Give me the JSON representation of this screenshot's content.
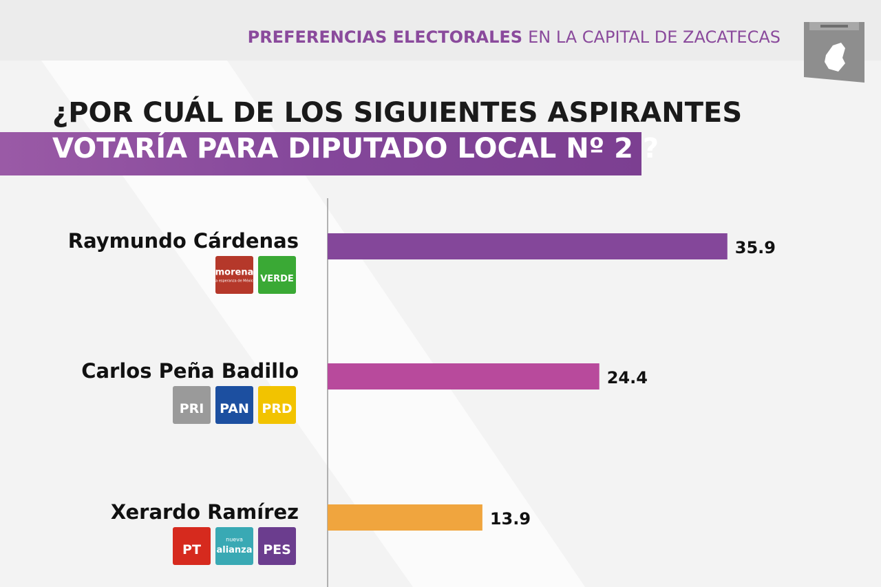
{
  "header": {
    "bold": "PREFERENCIAS ELECTORALES",
    "rest": "EN LA CAPITAL DE ZACATECAS"
  },
  "chart_data": {
    "type": "bar",
    "orientation": "horizontal",
    "title_lines": [
      "¿POR CUÁL DE LOS SIGUIENTES ASPIRANTES",
      "VOTARÍA PARA DIPUTADO LOCAL Nº 2 ?"
    ],
    "categories": [
      "Raymundo Cárdenas",
      "Carlos Peña Badillo",
      "Xerardo Ramírez"
    ],
    "values": [
      35.9,
      24.4,
      13.9
    ],
    "colors": [
      "#84479a",
      "#b84a9c",
      "#f0a53e"
    ],
    "xlim": [
      0,
      45
    ],
    "parties": [
      [
        {
          "label": "morena",
          "sub": "La esperanza de México",
          "color": "#b5382a"
        },
        {
          "label": "VERDE",
          "color": "#3aa935"
        }
      ],
      [
        {
          "label": "PRI",
          "color": "#9a9a9a"
        },
        {
          "label": "PAN",
          "color": "#1c4fa0"
        },
        {
          "label": "PRD",
          "color": "#f2c300"
        }
      ],
      [
        {
          "label": "PT",
          "color": "#d62a1e"
        },
        {
          "label": "alianza",
          "sub": "nueva",
          "color": "#39a9b4"
        },
        {
          "label": "PES",
          "color": "#6b3d8e"
        }
      ]
    ]
  }
}
